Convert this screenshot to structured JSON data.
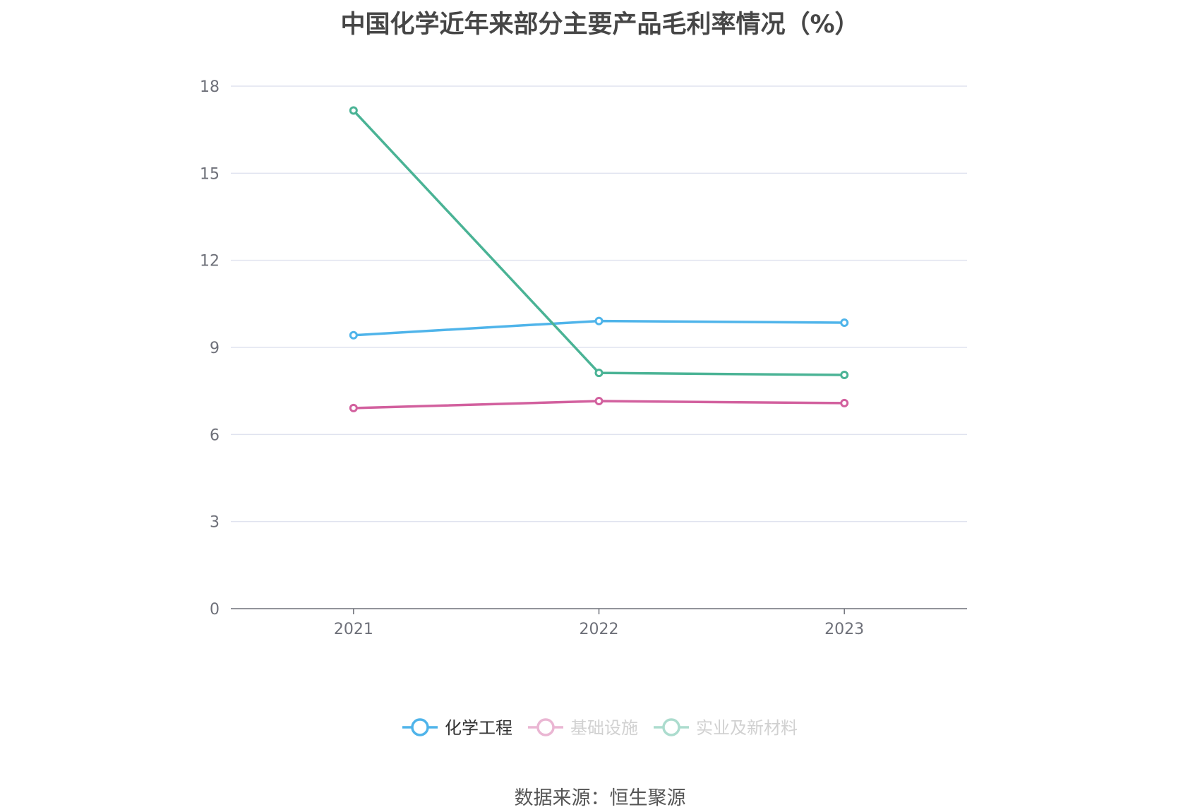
{
  "chart_data": {
    "type": "line",
    "title": "中国化学近年来部分主要产品毛利率情况（%）",
    "categories": [
      "2021",
      "2022",
      "2023"
    ],
    "series": [
      {
        "name": "化学工程",
        "values": [
          9.42,
          9.91,
          9.85
        ],
        "color": "#4fb4ea"
      },
      {
        "name": "基础设施",
        "values": [
          6.91,
          7.15,
          7.08
        ],
        "color": "#d2609e"
      },
      {
        "name": "实业及新材料",
        "values": [
          17.16,
          8.12,
          8.05
        ],
        "color": "#4ab395"
      }
    ],
    "ylim": [
      0,
      18
    ],
    "yticks": [
      0,
      3,
      6,
      9,
      12,
      15,
      18
    ],
    "grid": true,
    "legend_position": "bottom-center",
    "legend_inactive_color": "#9a9a9a",
    "axis_color": "#6e7079",
    "grid_color": "#e0e3ef"
  },
  "footer": {
    "source": "数据来源：恒生聚源"
  }
}
